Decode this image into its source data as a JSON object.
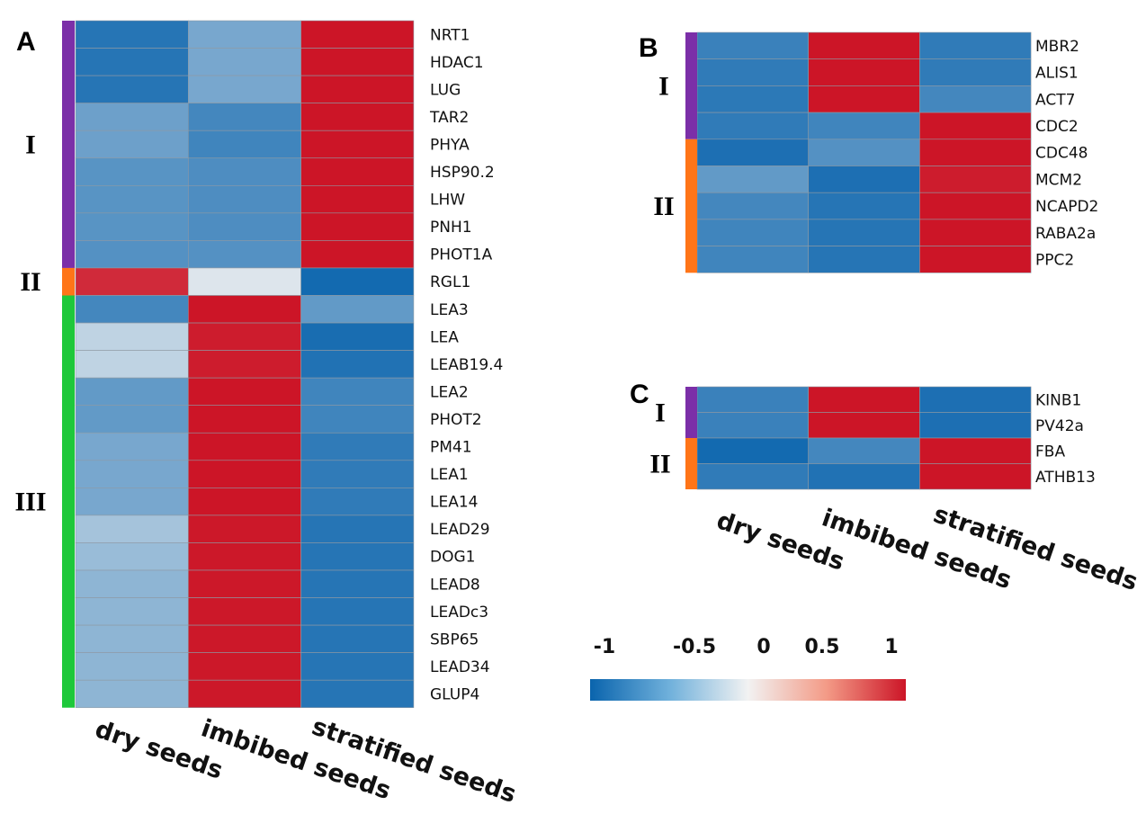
{
  "colors": {
    "neg": "#0a64ad",
    "mid": "#f2f2f2",
    "pos": "#cc1527",
    "cluster_I": "#7b2fa8",
    "cluster_II": "#ff7518",
    "cluster_III": "#1ec83a",
    "cell_border": "#8f9aa4"
  },
  "chart_data": [
    {
      "type": "heatmap",
      "panel": "A",
      "columns": [
        "dry seeds",
        "imbibed seeds",
        "stratified seeds"
      ],
      "rows": [
        "NRT1",
        "HDAC1",
        "LUG",
        "TAR2",
        "PHYA",
        "HSP90.2",
        "LHW",
        "PNH1",
        "PHOT1A",
        "RGL1",
        "LEA3",
        "LEA",
        "LEAB19.4",
        "LEA2",
        "PHOT2",
        "PM41",
        "LEA1",
        "LEA14",
        "LEAD29",
        "DOG1",
        "LEAD8",
        "LEADc3",
        "SBP65",
        "LEAD34",
        "GLUP4"
      ],
      "values": [
        [
          -0.85,
          -0.45,
          1.0
        ],
        [
          -0.85,
          -0.45,
          1.0
        ],
        [
          -0.85,
          -0.45,
          1.0
        ],
        [
          -0.5,
          -0.7,
          1.0
        ],
        [
          -0.5,
          -0.72,
          1.0
        ],
        [
          -0.6,
          -0.65,
          1.0
        ],
        [
          -0.6,
          -0.65,
          1.0
        ],
        [
          -0.6,
          -0.65,
          1.0
        ],
        [
          -0.62,
          -0.62,
          1.0
        ],
        [
          0.85,
          -0.05,
          -0.95
        ],
        [
          -0.7,
          1.0,
          -0.55
        ],
        [
          -0.15,
          0.95,
          -0.92
        ],
        [
          -0.15,
          0.95,
          -0.88
        ],
        [
          -0.55,
          1.0,
          -0.72
        ],
        [
          -0.55,
          1.0,
          -0.72
        ],
        [
          -0.45,
          1.0,
          -0.8
        ],
        [
          -0.45,
          1.0,
          -0.8
        ],
        [
          -0.45,
          1.0,
          -0.8
        ],
        [
          -0.25,
          0.98,
          -0.85
        ],
        [
          -0.3,
          0.98,
          -0.85
        ],
        [
          -0.35,
          0.98,
          -0.85
        ],
        [
          -0.35,
          0.98,
          -0.85
        ],
        [
          -0.35,
          0.98,
          -0.85
        ],
        [
          -0.35,
          0.98,
          -0.85
        ],
        [
          -0.35,
          0.98,
          -0.85
        ]
      ],
      "clusters": [
        {
          "label": "I",
          "start": 0,
          "end": 8,
          "color_key": "cluster_I"
        },
        {
          "label": "II",
          "start": 9,
          "end": 9,
          "color_key": "cluster_II"
        },
        {
          "label": "III",
          "start": 10,
          "end": 24,
          "color_key": "cluster_III"
        }
      ]
    },
    {
      "type": "heatmap",
      "panel": "B",
      "columns": [
        "dry seeds",
        "imbibed seeds",
        "stratified seeds"
      ],
      "rows": [
        "MBR2",
        "ALIS1",
        "ACT7",
        "CDC2",
        "CDC48",
        "MCM2",
        "NCAPD2",
        "RABA2a",
        "PPC2"
      ],
      "values": [
        [
          -0.75,
          1.0,
          -0.8
        ],
        [
          -0.8,
          1.0,
          -0.8
        ],
        [
          -0.82,
          1.0,
          -0.7
        ],
        [
          -0.8,
          -0.72,
          1.0
        ],
        [
          -0.9,
          -0.62,
          1.0
        ],
        [
          -0.55,
          -0.9,
          0.95
        ],
        [
          -0.7,
          -0.85,
          1.0
        ],
        [
          -0.72,
          -0.85,
          1.0
        ],
        [
          -0.72,
          -0.85,
          1.0
        ]
      ],
      "clusters": [
        {
          "label": "I",
          "start": 0,
          "end": 3,
          "color_key": "cluster_I"
        },
        {
          "label": "II",
          "start": 4,
          "end": 8,
          "color_key": "cluster_II"
        }
      ]
    },
    {
      "type": "heatmap",
      "panel": "C",
      "columns": [
        "dry seeds",
        "imbibed seeds",
        "stratified seeds"
      ],
      "rows": [
        "KINB1",
        "PV42a",
        "FBA",
        "ATHB13"
      ],
      "values": [
        [
          -0.75,
          1.0,
          -0.9
        ],
        [
          -0.75,
          1.0,
          -0.9
        ],
        [
          -0.95,
          -0.7,
          1.0
        ],
        [
          -0.8,
          -0.88,
          1.0
        ]
      ],
      "clusters": [
        {
          "label": "I",
          "start": 0,
          "end": 1,
          "color_key": "cluster_I"
        },
        {
          "label": "II",
          "start": 2,
          "end": 3,
          "color_key": "cluster_II"
        }
      ]
    }
  ],
  "legend": {
    "ticks": [
      "-1",
      "-0.5",
      "0",
      "0.5",
      "1"
    ],
    "tick_values": [
      -1,
      -0.5,
      0,
      0.5,
      1
    ],
    "range": [
      -1,
      1
    ]
  }
}
